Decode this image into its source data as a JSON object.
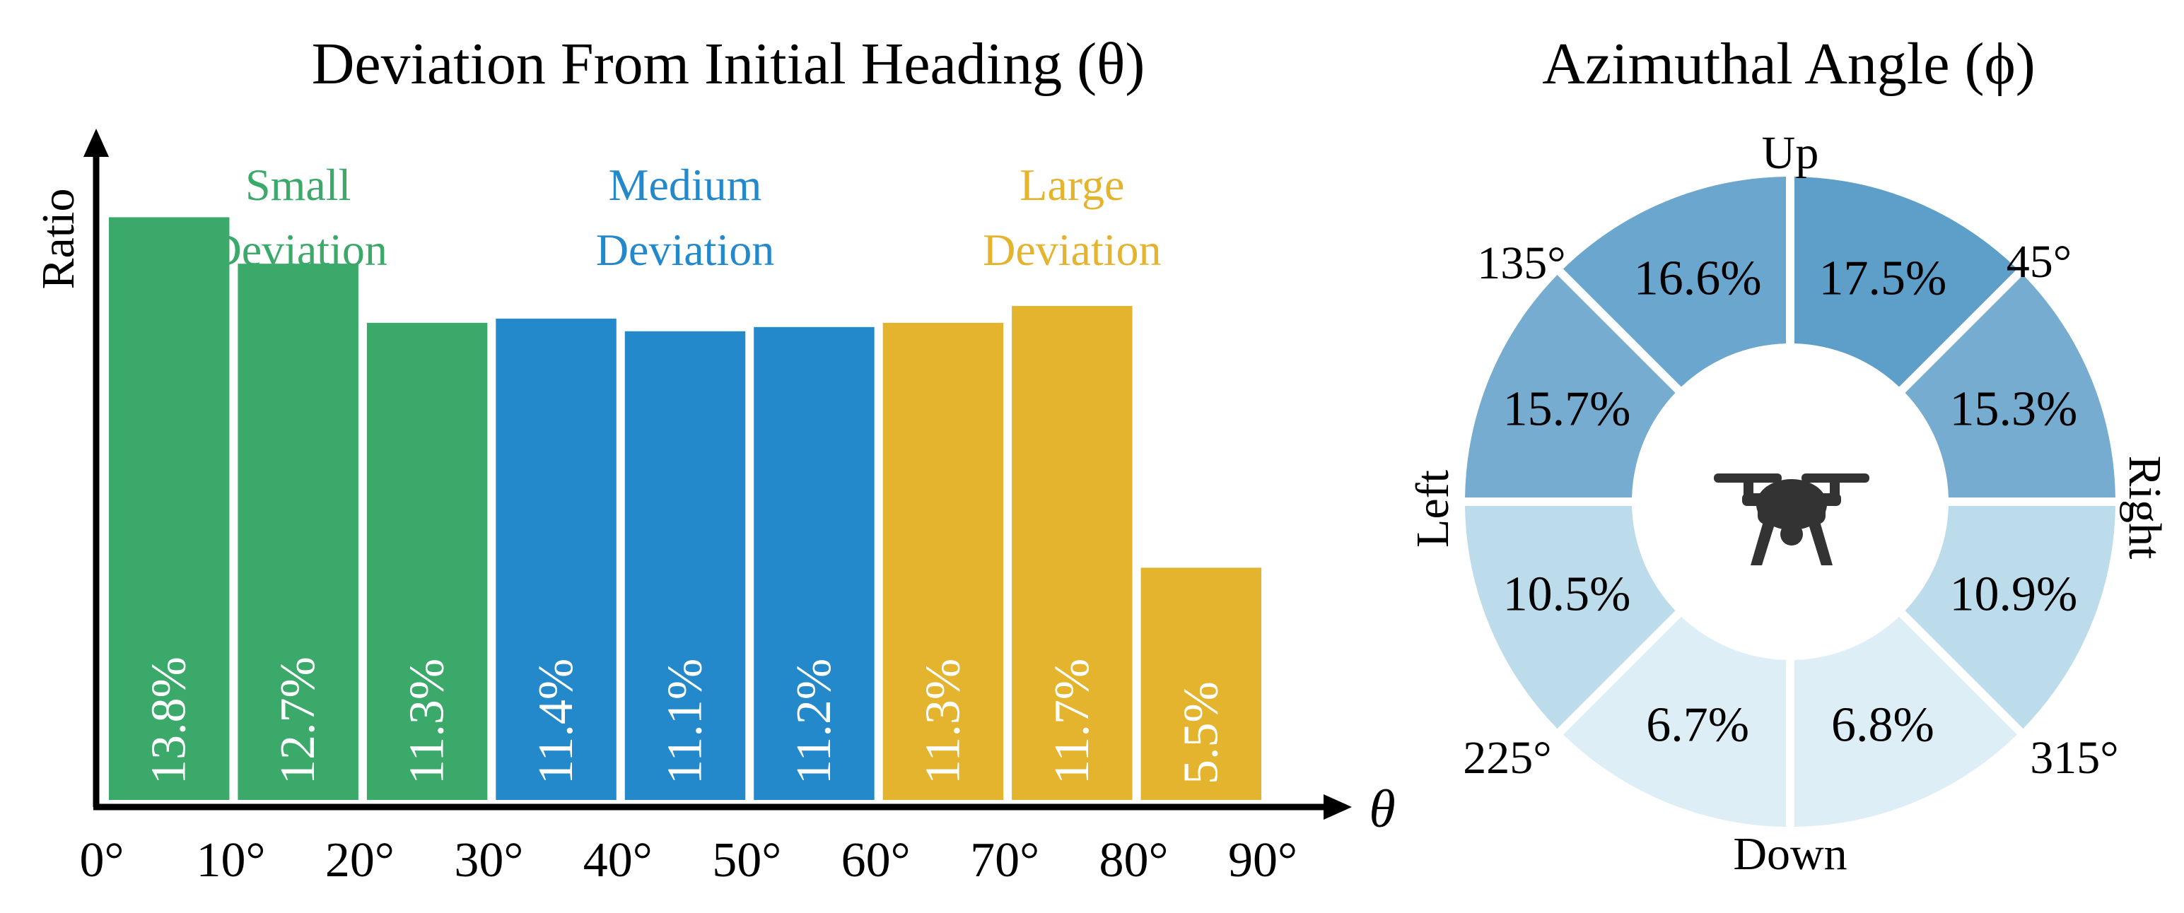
{
  "chart_data": [
    {
      "type": "bar",
      "title": "Deviation From Initial Heading (θ)",
      "ylabel": "Ratio",
      "xlabel": "θ",
      "x_ticks": [
        "0°",
        "10°",
        "20°",
        "30°",
        "40°",
        "50°",
        "60°",
        "70°",
        "80°",
        "90°"
      ],
      "bins": [
        {
          "from": 0,
          "to": 10,
          "value": 13.8,
          "label": "13.8%",
          "group": 0
        },
        {
          "from": 10,
          "to": 20,
          "value": 12.7,
          "label": "12.7%",
          "group": 0
        },
        {
          "from": 20,
          "to": 30,
          "value": 11.3,
          "label": "11.3%",
          "group": 0
        },
        {
          "from": 30,
          "to": 40,
          "value": 11.4,
          "label": "11.4%",
          "group": 1
        },
        {
          "from": 40,
          "to": 50,
          "value": 11.1,
          "label": "11.1%",
          "group": 1
        },
        {
          "from": 50,
          "to": 60,
          "value": 11.2,
          "label": "11.2%",
          "group": 1
        },
        {
          "from": 60,
          "to": 70,
          "value": 11.3,
          "label": "11.3%",
          "group": 2
        },
        {
          "from": 70,
          "to": 80,
          "value": 11.7,
          "label": "11.7%",
          "group": 2
        },
        {
          "from": 80,
          "to": 90,
          "value": 5.5,
          "label": "5.5%",
          "group": 2
        }
      ],
      "groups": [
        {
          "line1": "Small",
          "line2": "Deviation",
          "color": "#3aa96a"
        },
        {
          "line1": "Medium",
          "line2": "Deviation",
          "color": "#2489cb"
        },
        {
          "line1": "Large",
          "line2": "Deviation",
          "color": "#e4b42f"
        }
      ],
      "ylim": [
        0,
        16
      ],
      "axis_color": "#000000",
      "bar_label_color": "#ffffff"
    },
    {
      "type": "pie",
      "title": "Azimuthal Angle (ϕ)",
      "center_icon": "drone-icon",
      "direction_labels": {
        "up": "Up",
        "down": "Down",
        "left": "Left",
        "right": "Right"
      },
      "angle_labels": {
        "a45": "45°",
        "a135": "135°",
        "a225": "225°",
        "a315": "315°"
      },
      "slices": [
        {
          "sector": "up-right",
          "value": 17.5,
          "label": "17.5%",
          "color": "#5d9fc8"
        },
        {
          "sector": "right-upper",
          "value": 15.3,
          "label": "15.3%",
          "color": "#75acd0"
        },
        {
          "sector": "right-lower",
          "value": 10.9,
          "label": "10.9%",
          "color": "#bcdbeb"
        },
        {
          "sector": "down-right",
          "value": 6.8,
          "label": "6.8%",
          "color": "#deeef7"
        },
        {
          "sector": "down-left",
          "value": 6.7,
          "label": "6.7%",
          "color": "#deeef7"
        },
        {
          "sector": "left-lower",
          "value": 10.5,
          "label": "10.5%",
          "color": "#bcdbeb"
        },
        {
          "sector": "left-upper",
          "value": 15.7,
          "label": "15.7%",
          "color": "#75acd0"
        },
        {
          "sector": "up-left",
          "value": 16.6,
          "label": "16.6%",
          "color": "#6aa6ce"
        }
      ],
      "icon_color": "#333333"
    }
  ]
}
